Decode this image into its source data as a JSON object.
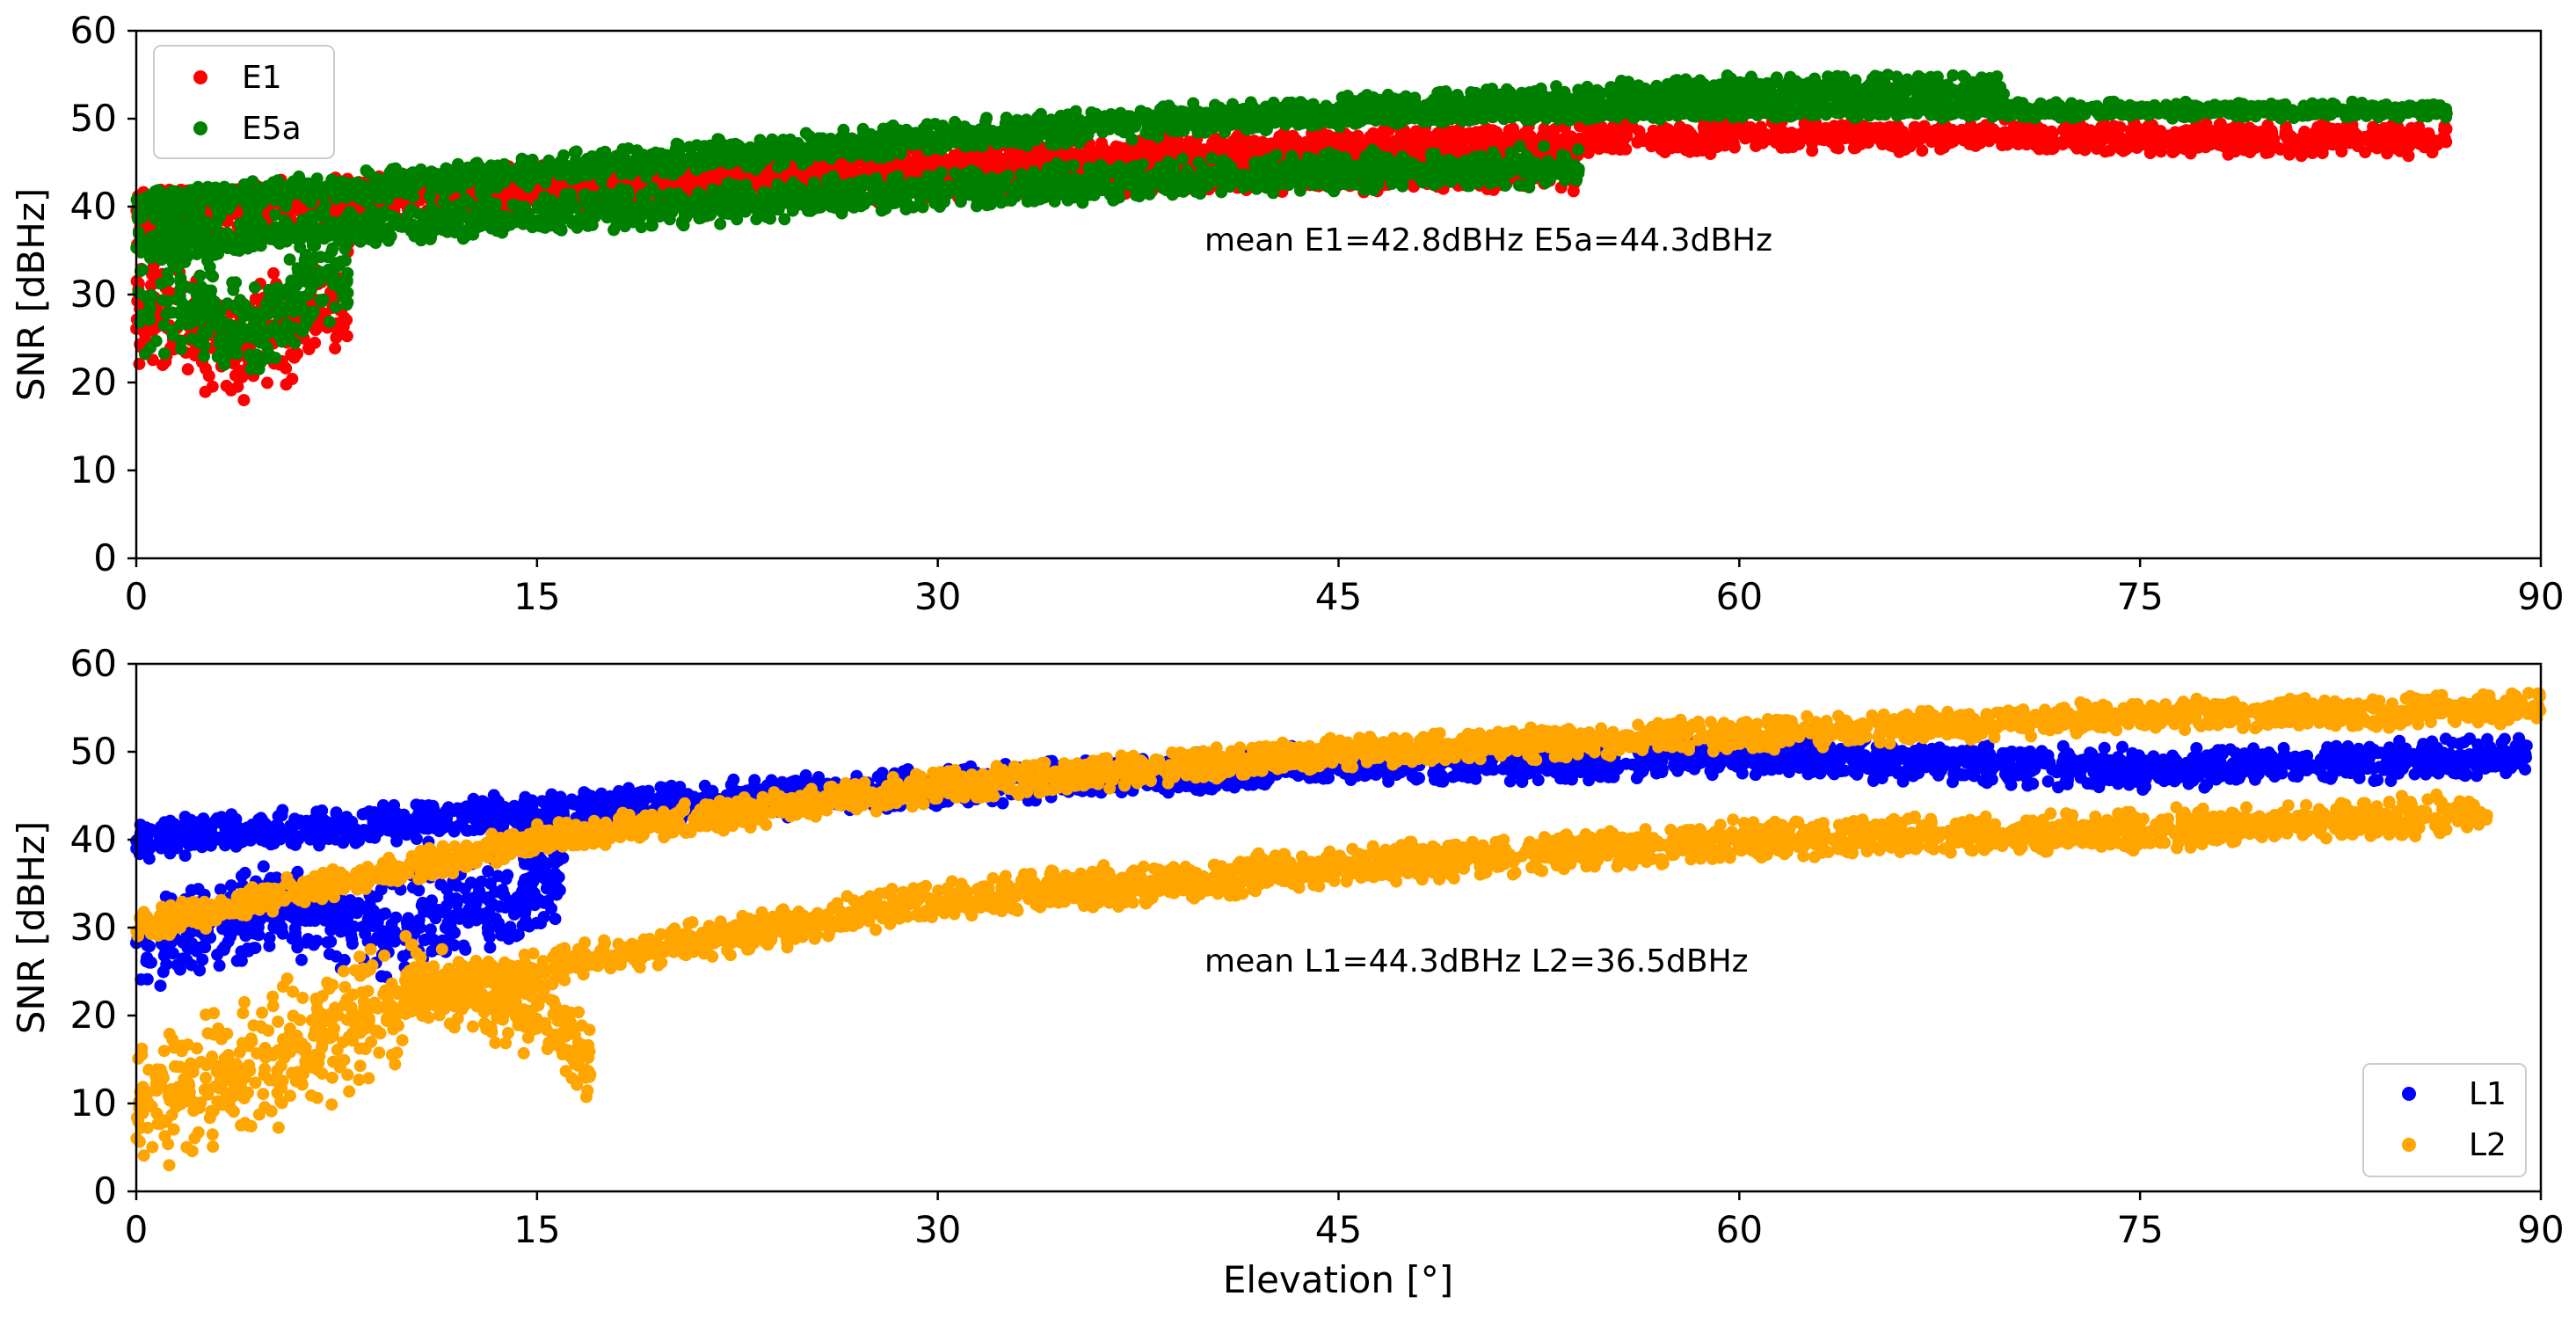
{
  "chart_data": [
    {
      "type": "scatter",
      "title": "",
      "xlabel": "",
      "ylabel": "SNR [dBHz]",
      "xlim": [
        0,
        90
      ],
      "ylim": [
        0,
        60
      ],
      "xticks": [
        "0",
        "15",
        "30",
        "45",
        "60",
        "75",
        "90"
      ],
      "yticks": [
        "0",
        "10",
        "20",
        "30",
        "40",
        "50",
        "60"
      ],
      "grid": false,
      "legend_position": "top-left",
      "annotation": "mean E1=42.8dBHz E5a=44.3dBHz",
      "series": [
        {
          "name": "E1",
          "color": "#ff0000",
          "bands": [
            {
              "x": [
                0,
                10,
                20,
                30,
                40,
                54
              ],
              "y": [
                38,
                41,
                42,
                43,
                44,
                44
              ],
              "spread": 2.5
            },
            {
              "x": [
                0,
                15,
                30,
                45,
                60,
                70,
                86.5
              ],
              "y": [
                40,
                43,
                45,
                47,
                48,
                48,
                47.5
              ],
              "spread": 2
            },
            {
              "x": [
                0,
                4,
                8
              ],
              "y": [
                28,
                24,
                30
              ],
              "spread": 7
            }
          ]
        },
        {
          "name": "E5a",
          "color": "#008000",
          "bands": [
            {
              "x": [
                0,
                10,
                20,
                30,
                45,
                54
              ],
              "y": [
                36,
                38,
                40,
                42,
                44,
                44.5
              ],
              "spread": 2.5
            },
            {
              "x": [
                0,
                15,
                30,
                45,
                60,
                70
              ],
              "y": [
                40,
                44,
                48,
                51,
                53,
                53.5
              ],
              "spread": 2
            },
            {
              "x": [
                40,
                60,
                75,
                86.5
              ],
              "y": [
                50,
                51,
                51,
                51
              ],
              "spread": 1
            },
            {
              "x": [
                0,
                4,
                8
              ],
              "y": [
                30,
                26,
                33
              ],
              "spread": 7
            }
          ]
        }
      ]
    },
    {
      "type": "scatter",
      "title": "",
      "xlabel": "Elevation [°]",
      "ylabel": "SNR [dBHz]",
      "xlim": [
        0,
        90
      ],
      "ylim": [
        0,
        60
      ],
      "xticks": [
        "0",
        "15",
        "30",
        "45",
        "60",
        "75",
        "90"
      ],
      "yticks": [
        "0",
        "10",
        "20",
        "30",
        "40",
        "50",
        "60"
      ],
      "grid": false,
      "legend_position": "bottom-right",
      "annotation": "mean L1=44.3dBHz L2=36.5dBHz",
      "series": [
        {
          "name": "L1",
          "color": "#0000ff",
          "bands": [
            {
              "x": [
                0,
                15,
                30,
                45,
                60,
                75,
                89.5
              ],
              "y": [
                40,
                43,
                46,
                48.5,
                49.5,
                48,
                49.5
              ],
              "spread": 2.5
            },
            {
              "x": [
                0,
                5,
                10,
                16
              ],
              "y": [
                28,
                32,
                30,
                36
              ],
              "spread": 6
            }
          ]
        },
        {
          "name": "L2",
          "color": "#ffa500",
          "bands": [
            {
              "x": [
                0,
                15,
                30,
                45,
                60,
                75,
                90
              ],
              "y": [
                30,
                40,
                46,
                50,
                52,
                54,
                55
              ],
              "spread": 2
            },
            {
              "x": [
                10,
                20,
                30,
                45,
                60,
                75,
                88
              ],
              "y": [
                22,
                28,
                33,
                37,
                40,
                41,
                43
              ],
              "spread": 2.5
            },
            {
              "x": [
                0,
                5,
                10
              ],
              "y": [
                10,
                15,
                22
              ],
              "spread": 9
            },
            {
              "x": [
                10,
                15,
                17
              ],
              "y": [
                25,
                20,
                15
              ],
              "spread": 5
            }
          ]
        }
      ]
    }
  ]
}
